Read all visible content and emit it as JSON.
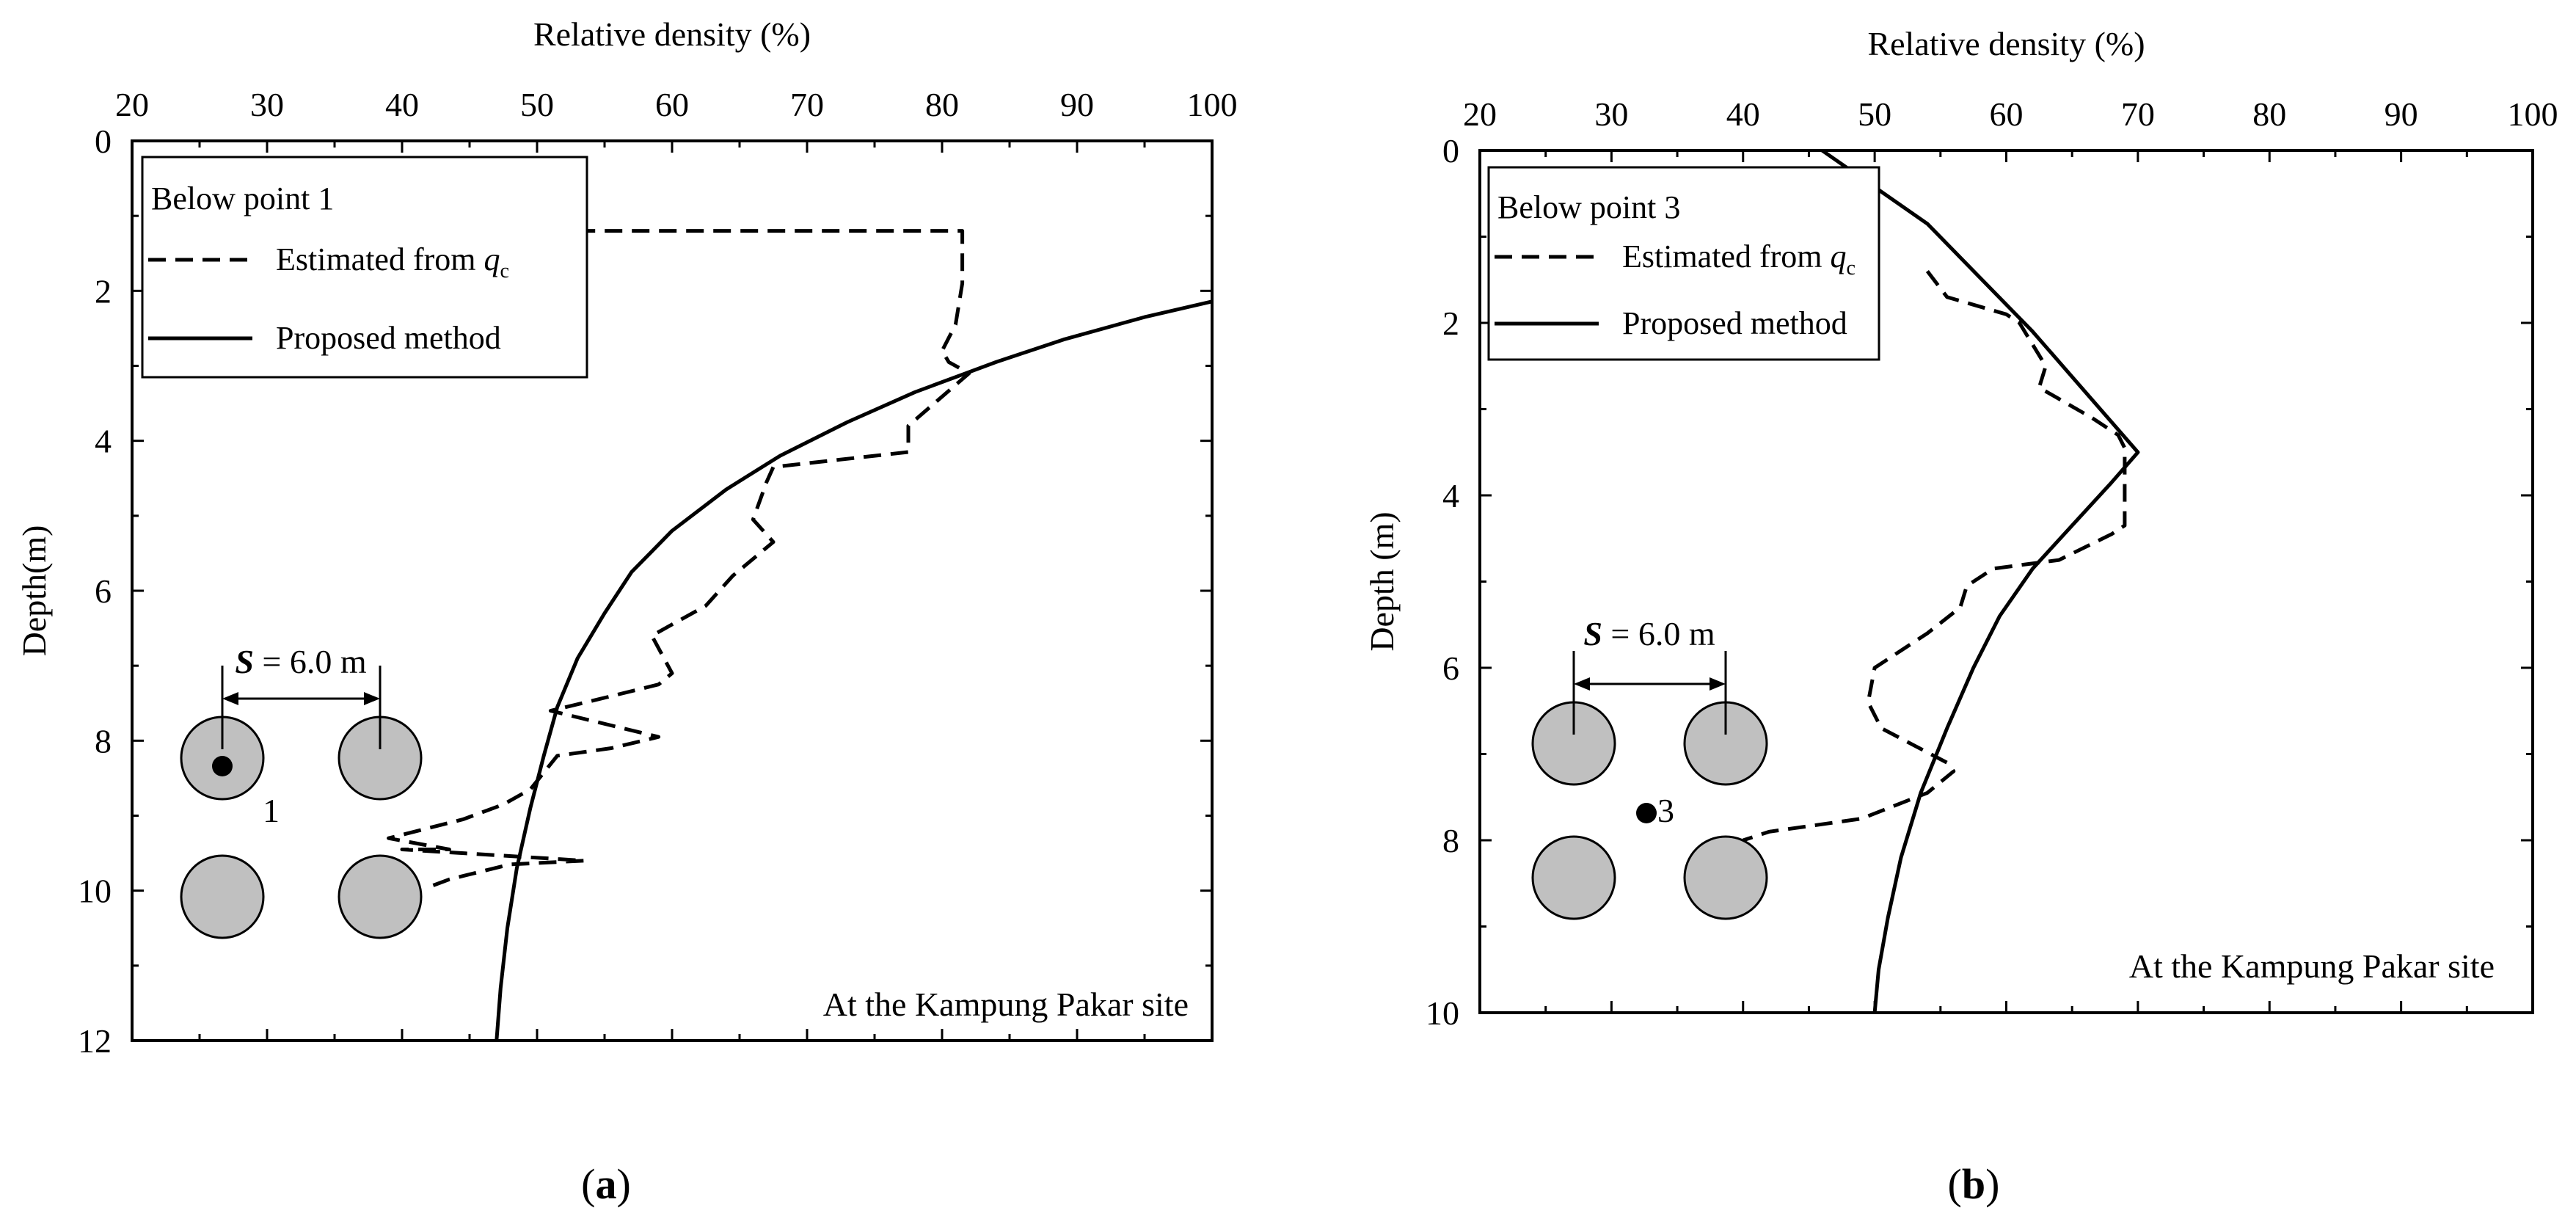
{
  "chart_data": [
    {
      "type": "line",
      "panel": "a",
      "caption_prefix": "(",
      "caption_letter": "a",
      "caption_suffix": ")",
      "xlabel": "Relative density (%)",
      "ylabel": "Depth(m)",
      "xlim": [
        20,
        100
      ],
      "ylim": [
        12,
        0
      ],
      "xticks": [
        20,
        30,
        40,
        50,
        60,
        70,
        80,
        90,
        100
      ],
      "yticks": [
        0,
        2,
        4,
        6,
        8,
        10,
        12
      ],
      "legend": {
        "title": "Below point 1",
        "placement": "top-left",
        "entries": [
          {
            "name": "Estimated from ",
            "sym": "q",
            "sub": "c",
            "style": "dashed"
          },
          {
            "name": "Proposed method",
            "style": "solid"
          }
        ]
      },
      "annotation": "At the Kampung Pakar site",
      "spacing_label": {
        "sym": "S",
        "text": " = 6.0 m"
      },
      "point_label": "1",
      "series": [
        {
          "name": "Estimated from qc",
          "style": "dashed",
          "x": [
            53,
            81.5,
            81.5,
            81,
            80,
            80.5,
            82,
            77.5,
            77.5,
            67.5,
            67,
            66,
            67.5,
            64.5,
            62.5,
            58.5,
            60,
            59,
            54.5,
            51,
            59,
            55.5,
            51.5,
            49.5,
            47.5,
            44.5,
            39,
            43.5,
            40,
            53.5,
            48,
            43.5,
            42
          ],
          "y": [
            1.2,
            1.2,
            1.9,
            2.45,
            2.8,
            2.95,
            3.1,
            3.8,
            4.15,
            4.35,
            4.55,
            5.05,
            5.35,
            5.8,
            6.2,
            6.6,
            7.1,
            7.25,
            7.45,
            7.6,
            7.95,
            8.1,
            8.2,
            8.65,
            8.85,
            9.05,
            9.3,
            9.45,
            9.45,
            9.6,
            9.65,
            9.85,
            9.95
          ]
        },
        {
          "name": "Proposed method",
          "style": "solid",
          "x": [
            101,
            95,
            89,
            84,
            78,
            73,
            68,
            64,
            60,
            57,
            55,
            53,
            51.5,
            50.5,
            49.5,
            48.5,
            47.8,
            47.3,
            47
          ],
          "y": [
            2.1,
            2.35,
            2.65,
            2.95,
            3.35,
            3.75,
            4.2,
            4.65,
            5.2,
            5.75,
            6.3,
            6.9,
            7.55,
            8.2,
            8.9,
            9.7,
            10.5,
            11.3,
            12
          ]
        }
      ]
    },
    {
      "type": "line",
      "panel": "b",
      "caption_prefix": "(",
      "caption_letter": "b",
      "caption_suffix": ")",
      "xlabel": "Relative density (%)",
      "ylabel": "Depth (m)",
      "xlim": [
        20,
        100
      ],
      "ylim": [
        10,
        0
      ],
      "xticks": [
        20,
        30,
        40,
        50,
        60,
        70,
        80,
        90,
        100
      ],
      "yticks": [
        0,
        2,
        4,
        6,
        8,
        10
      ],
      "legend": {
        "title": "Below point 3",
        "placement": "top-left",
        "entries": [
          {
            "name": "Estimated from ",
            "sym": "q",
            "sub": "c",
            "style": "dashed"
          },
          {
            "name": "Proposed method",
            "style": "solid"
          }
        ]
      },
      "annotation": "At the Kampung Pakar site",
      "spacing_label": {
        "sym": "S",
        "text": " = 6.0 m"
      },
      "point_label": "3",
      "series": [
        {
          "name": "Estimated from qc",
          "style": "dashed",
          "x": [
            54,
            55.5,
            60,
            61,
            63,
            62.5,
            66.5,
            68.5,
            69,
            69,
            69,
            68,
            64,
            59,
            57,
            56.5,
            54,
            52,
            50,
            49.5,
            50.5,
            55.5,
            56,
            54,
            49,
            42,
            40
          ],
          "y": [
            1.4,
            1.7,
            1.9,
            2.0,
            2.5,
            2.75,
            3.1,
            3.3,
            3.45,
            4.1,
            4.35,
            4.45,
            4.75,
            4.85,
            5.05,
            5.3,
            5.6,
            5.8,
            6.0,
            6.4,
            6.7,
            7.1,
            7.2,
            7.45,
            7.75,
            7.9,
            8.0
          ]
        },
        {
          "name": "Proposed method",
          "style": "solid",
          "x": [
            46,
            54,
            62,
            70,
            68,
            65,
            62,
            59.5,
            57.5,
            55.5,
            53.5,
            52,
            51,
            50.3,
            50
          ],
          "y": [
            0,
            0.85,
            2.1,
            3.5,
            3.85,
            4.35,
            4.85,
            5.4,
            6.0,
            6.7,
            7.45,
            8.2,
            8.9,
            9.5,
            10
          ]
        }
      ]
    }
  ]
}
